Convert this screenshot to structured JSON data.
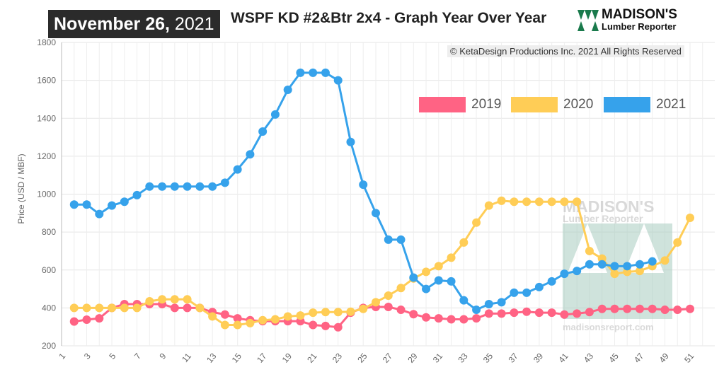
{
  "header": {
    "date_bold": "November 26,",
    "date_year": "2021",
    "title": "WSPF KD #2&Btr 2x4 - Graph Year Over Year",
    "logo_line1": "MADISON'S",
    "logo_line2": "Lumber Reporter"
  },
  "copyright": "© KetaDesign Productions Inc. 2021 All Rights Reserved",
  "watermark": {
    "line1": "MADISON'S",
    "line2": "Lumber Reporter",
    "url": "madisonsreport.com"
  },
  "chart_data": {
    "type": "line",
    "title": "WSPF KD #2&Btr 2x4 - Graph Year Over Year",
    "xlabel": "",
    "ylabel": "Price (USD / MBF)",
    "ylim": [
      200,
      1800
    ],
    "yticks": [
      200,
      400,
      600,
      800,
      1000,
      1200,
      1400,
      1600,
      1800
    ],
    "xticks": [
      1,
      3,
      5,
      7,
      9,
      11,
      13,
      15,
      17,
      19,
      21,
      23,
      25,
      27,
      29,
      31,
      33,
      35,
      37,
      39,
      41,
      43,
      45,
      47,
      49,
      51
    ],
    "xrange": [
      1,
      52
    ],
    "legend": "top-right",
    "grid": true,
    "series": [
      {
        "name": "2019",
        "color": "#ff6384",
        "start_week": 2,
        "values": [
          328,
          338,
          345,
          400,
          420,
          420,
          420,
          420,
          400,
          400,
          400,
          378,
          365,
          345,
          335,
          330,
          330,
          330,
          330,
          310,
          305,
          298,
          375,
          400,
          405,
          405,
          390,
          367,
          350,
          345,
          340,
          340,
          345,
          370,
          370,
          375,
          380,
          375,
          375,
          365,
          370,
          378,
          395,
          395,
          395,
          395,
          395,
          390,
          390,
          395
        ]
      },
      {
        "name": "2020",
        "color": "#ffcd56",
        "start_week": 2,
        "values": [
          400,
          400,
          400,
          400,
          400,
          400,
          435,
          445,
          445,
          445,
          400,
          355,
          310,
          310,
          320,
          335,
          340,
          355,
          360,
          375,
          378,
          378,
          380,
          395,
          430,
          465,
          505,
          555,
          590,
          620,
          665,
          745,
          850,
          940,
          965,
          960,
          960,
          960,
          960,
          960,
          960,
          700,
          660,
          580,
          590,
          595,
          620,
          650,
          745,
          875
        ]
      },
      {
        "name": "2021",
        "color": "#36a2eb",
        "start_week": 2,
        "values": [
          945,
          945,
          895,
          940,
          960,
          995,
          1040,
          1040,
          1040,
          1040,
          1040,
          1040,
          1060,
          1130,
          1210,
          1330,
          1420,
          1550,
          1640,
          1640,
          1640,
          1600,
          1275,
          1050,
          900,
          760,
          760,
          560,
          500,
          545,
          540,
          440,
          390,
          420,
          430,
          480,
          480,
          510,
          540,
          580,
          595,
          630,
          630,
          620,
          620,
          630,
          645
        ]
      }
    ]
  }
}
